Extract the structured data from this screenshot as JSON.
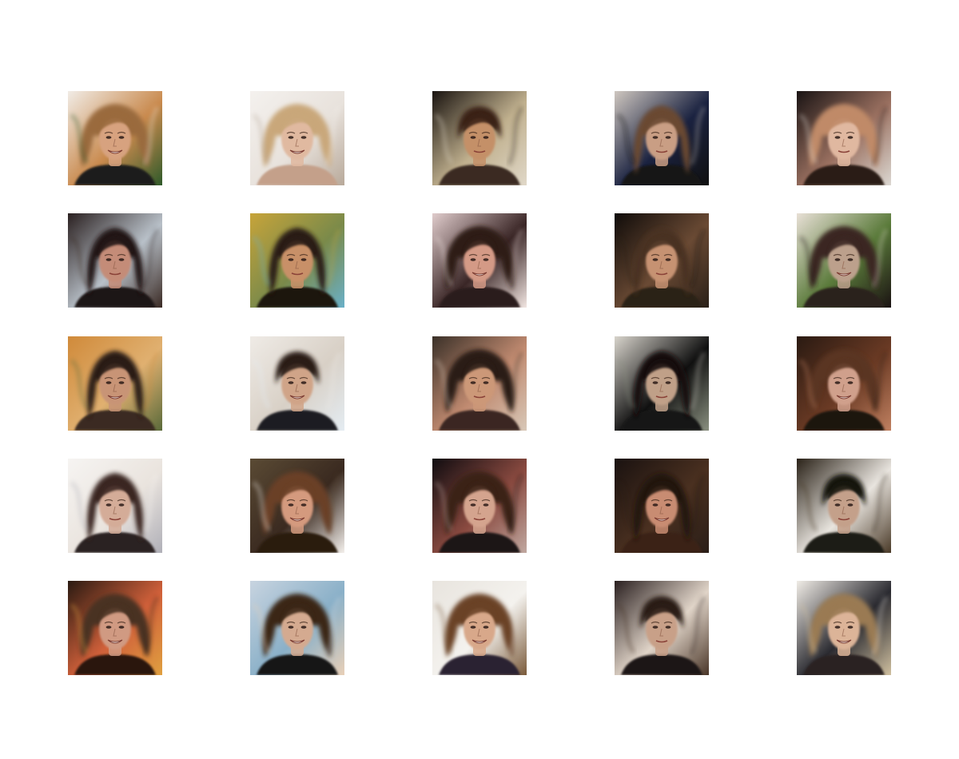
{
  "grid": {
    "rows": 5,
    "columns": 5,
    "tiles": [
      {
        "bg": [
          "#f1ece6",
          "#c98a4e",
          "#2f5a2a"
        ],
        "hair": "#9a6a3c",
        "skin": "#d7a27f",
        "shirt": "#1a1a1a",
        "hair_shape": "wide",
        "smile": true
      },
      {
        "bg": [
          "#f4f1ee",
          "#e8e2dc",
          "#b8a99a"
        ],
        "hair": "#c9a77a",
        "skin": "#e0b9a0",
        "shirt": "#c4a08a",
        "hair_shape": "wide",
        "smile": true
      },
      {
        "bg": [
          "#1a1410",
          "#c0b08e",
          "#e0d8c8"
        ],
        "hair": "#3a2418",
        "skin": "#c49068",
        "shirt": "#3a2a20",
        "hair_shape": "short",
        "smile": false
      },
      {
        "bg": [
          "#cfc7c0",
          "#1a2240",
          "#101010"
        ],
        "hair": "#6b4a32",
        "skin": "#c99e84",
        "shirt": "#121212",
        "hair_shape": "long",
        "smile": false
      },
      {
        "bg": [
          "#1a1414",
          "#9a7060",
          "#dcd8d2"
        ],
        "hair": "#c08a68",
        "skin": "#e0b8a0",
        "shirt": "#2a1a14",
        "hair_shape": "wide",
        "smile": false
      },
      {
        "bg": [
          "#2a2020",
          "#b8c0c8",
          "#3a2a24"
        ],
        "hair": "#241816",
        "skin": "#c48c78",
        "shirt": "#1e1614",
        "hair_shape": "long",
        "smile": false
      },
      {
        "bg": [
          "#c7a43a",
          "#7a8a4a",
          "#6ab0c8"
        ],
        "hair": "#2a1c14",
        "skin": "#c89068",
        "shirt": "#1a1410",
        "hair_shape": "long",
        "smile": false
      },
      {
        "bg": [
          "#e0cccc",
          "#3a2626",
          "#f2e6e2"
        ],
        "hair": "#2e1c18",
        "skin": "#d49a86",
        "shirt": "#2a1a1a",
        "hair_shape": "wide",
        "smile": true
      },
      {
        "bg": [
          "#100c0a",
          "#6a4a34",
          "#2a2018"
        ],
        "hair": "#4a3020",
        "skin": "#c69272",
        "shirt": "#2a2218",
        "hair_shape": "long",
        "smile": false
      },
      {
        "bg": [
          "#e8e0d6",
          "#5a7a3a",
          "#1a1212"
        ],
        "hair": "#3a2820",
        "skin": "#bca08c",
        "shirt": "#2a201a",
        "hair_shape": "wide",
        "smile": true
      },
      {
        "bg": [
          "#d08a3a",
          "#e0b070",
          "#5a6a3a"
        ],
        "hair": "#2a1c14",
        "skin": "#c89476",
        "shirt": "#3a2a20",
        "hair_shape": "long",
        "smile": true
      },
      {
        "bg": [
          "#efebe6",
          "#d8d0c6",
          "#e4ecf2"
        ],
        "hair": "#2a1e18",
        "skin": "#d0a488",
        "shirt": "#1a1a22",
        "hair_shape": "short",
        "smile": true
      },
      {
        "bg": [
          "#3a3028",
          "#c08a70",
          "#d8c8b8"
        ],
        "hair": "#2a1a14",
        "skin": "#cc9878",
        "shirt": "#3a2820",
        "hair_shape": "wide",
        "smile": false
      },
      {
        "bg": [
          "#d8d4cc",
          "#101010",
          "#8a9080"
        ],
        "hair": "#141010",
        "skin": "#c0a088",
        "shirt": "#181818",
        "hair_shape": "long",
        "smile": false
      },
      {
        "bg": [
          "#2a1a12",
          "#6a3a24",
          "#c08060"
        ],
        "hair": "#5a3420",
        "skin": "#d0a08c",
        "shirt": "#1e1410",
        "hair_shape": "wide",
        "smile": true
      },
      {
        "bg": [
          "#f6f4f2",
          "#eae4de",
          "#b0b0b8"
        ],
        "hair": "#3a2820",
        "skin": "#d4ac98",
        "shirt": "#2a2020",
        "hair_shape": "long",
        "smile": false
      },
      {
        "bg": [
          "#5a4a34",
          "#3a2a20",
          "#f4f0ec"
        ],
        "hair": "#6a4028",
        "skin": "#d49a7e",
        "shirt": "#2a1a10",
        "hair_shape": "wide",
        "smile": true
      },
      {
        "bg": [
          "#100c10",
          "#8a4a40",
          "#c0a8a0"
        ],
        "hair": "#3a2018",
        "skin": "#d4a48e",
        "shirt": "#1a1418",
        "hair_shape": "wide",
        "smile": false
      },
      {
        "bg": [
          "#1a1210",
          "#4a3020",
          "#2a1e18"
        ],
        "hair": "#241410",
        "skin": "#c88c72",
        "shirt": "#3a2418",
        "hair_shape": "long",
        "smile": true
      },
      {
        "bg": [
          "#2a2218",
          "#e8e4de",
          "#4a3a28"
        ],
        "hair": "#141210",
        "skin": "#c4a08a",
        "shirt": "#1e1a14",
        "hair_shape": "short",
        "smile": false
      },
      {
        "bg": [
          "#2a1a12",
          "#d0603a",
          "#e0a040"
        ],
        "hair": "#4a3020",
        "skin": "#d09a82",
        "shirt": "#2a1810",
        "hair_shape": "wide",
        "smile": true
      },
      {
        "bg": [
          "#c8d4e0",
          "#8ab0c8",
          "#e8d0b8"
        ],
        "hair": "#3a2818",
        "skin": "#d4aa90",
        "shirt": "#121214",
        "hair_shape": "wide",
        "smile": true
      },
      {
        "bg": [
          "#e8e4de",
          "#f4f2ee",
          "#7a5a3a"
        ],
        "hair": "#6a4228",
        "skin": "#d8a88a",
        "shirt": "#2a2430",
        "hair_shape": "wide",
        "smile": true
      },
      {
        "bg": [
          "#2a2020",
          "#e0d4c8",
          "#4a3628"
        ],
        "hair": "#2a1e18",
        "skin": "#c8a088",
        "shirt": "#1a1614",
        "hair_shape": "short",
        "smile": false
      },
      {
        "bg": [
          "#f0ece6",
          "#2a2a30",
          "#d0c0a0"
        ],
        "hair": "#9a7a52",
        "skin": "#dcb498",
        "shirt": "#2a2222",
        "hair_shape": "wide",
        "smile": true
      }
    ]
  }
}
